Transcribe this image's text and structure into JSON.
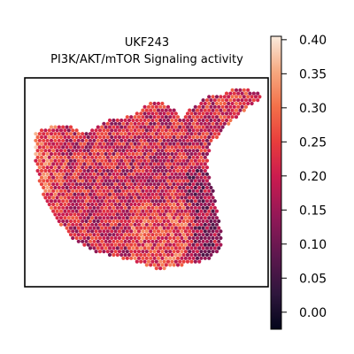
{
  "chart_data": {
    "type": "scatter",
    "subtype": "spatial-spot-map",
    "title_line1": "UKF243",
    "title_line2": "PI3K/AKT/mTOR Signaling activity",
    "xlabel": "",
    "ylabel": "",
    "axis_ticks_shown": false,
    "grid": false,
    "colormap": "rocket",
    "colorbar": {
      "range": [
        -0.025,
        0.405
      ],
      "ticks": [
        0.0,
        0.05,
        0.1,
        0.15,
        0.2,
        0.25,
        0.3,
        0.35,
        0.4
      ],
      "tick_labels": [
        "0.00",
        "0.05",
        "0.10",
        "0.15",
        "0.20",
        "0.25",
        "0.30",
        "0.35",
        "0.40"
      ],
      "placement": "right"
    },
    "colors": {
      "low": "#03051a",
      "mid": "#cb1b4f",
      "high": "#faebdd"
    }
  }
}
